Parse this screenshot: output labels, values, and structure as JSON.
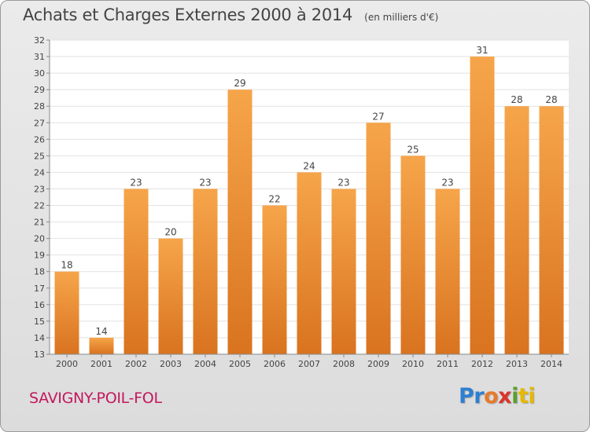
{
  "header": {
    "title": "Achats et Charges Externes 2000 à 2014",
    "unit": "(en milliers d'€)"
  },
  "footer": {
    "commune": "SAVIGNY-POIL-FOL",
    "logo": [
      "Pr",
      "o",
      "x",
      "i",
      "ti"
    ]
  },
  "colors": {
    "bar_light": "#f6a54a",
    "bar_dark": "#d9731f",
    "commune": "#c2185b",
    "text": "#444444"
  },
  "chart_data": {
    "type": "bar",
    "title": "Achats et Charges Externes 2000 à 2014",
    "subtitle": "(en milliers d'€)",
    "categories": [
      "2000",
      "2001",
      "2002",
      "2003",
      "2004",
      "2005",
      "2006",
      "2007",
      "2008",
      "2009",
      "2010",
      "2011",
      "2012",
      "2013",
      "2014"
    ],
    "values": [
      18,
      14,
      23,
      20,
      23,
      29,
      22,
      24,
      23,
      27,
      25,
      23,
      31,
      28,
      28
    ],
    "ylim": [
      13,
      32
    ],
    "yticks": [
      13,
      14,
      15,
      16,
      17,
      18,
      19,
      20,
      21,
      22,
      23,
      24,
      25,
      26,
      27,
      28,
      29,
      30,
      31,
      32
    ],
    "grid": true,
    "data_labels": true
  }
}
